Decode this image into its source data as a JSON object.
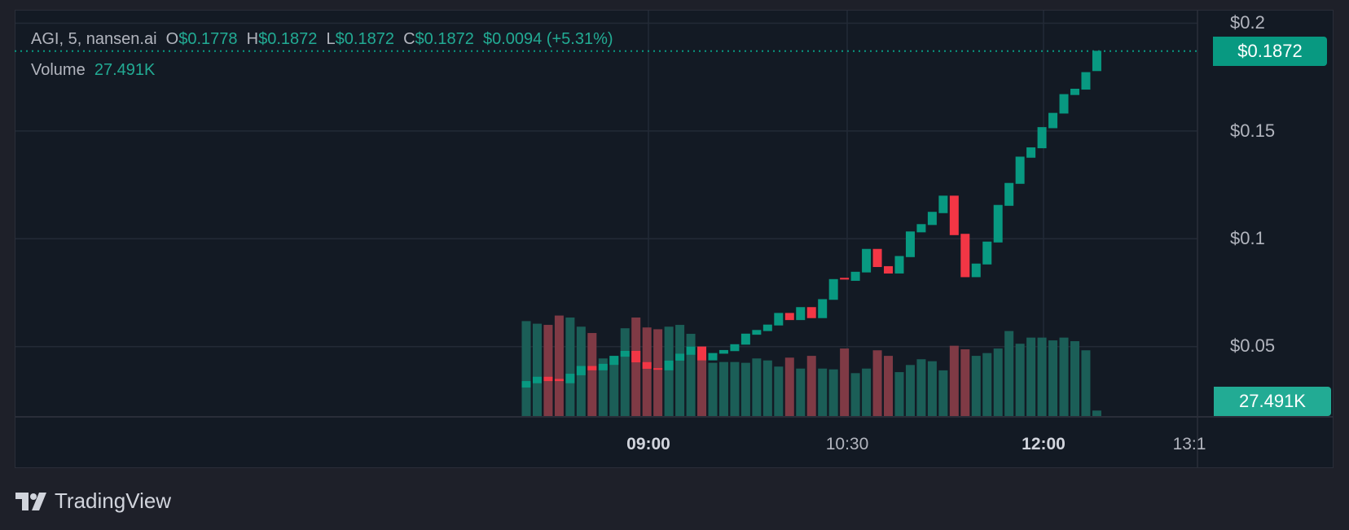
{
  "legend": {
    "symbol": "AGI, 5, nansen.ai",
    "open_label": "O",
    "open": "$0.1778",
    "high_label": "H",
    "high": "$0.1872",
    "low_label": "L",
    "low": "$0.1872",
    "close_label": "C",
    "close": "$0.1872",
    "change": "$0.0094 (+5.31%)",
    "volume_label": "Volume",
    "volume": "27.491K"
  },
  "price_axis": {
    "ticks": [
      "$0.2",
      "$0.15",
      "$0.1",
      "$0.05"
    ],
    "last_price": "$0.1872",
    "last_volume": "27.491K"
  },
  "time_axis": {
    "ticks": [
      "09:00",
      "10:30",
      "12:00",
      "13:1"
    ]
  },
  "brand": {
    "name": "TradingView"
  },
  "colors": {
    "up": "#089981",
    "down": "#f23645",
    "vol_up": "#1b5e57",
    "vol_down": "#7f3a45",
    "background": "#131a24",
    "grid": "#232a36"
  },
  "chart_data": {
    "type": "candlestick",
    "interval": "5",
    "ylim": [
      0,
      0.2
    ],
    "grid": true,
    "y_ticks": [
      0.05,
      0.1,
      0.15,
      0.2
    ],
    "x_ticks": [
      "09:00",
      "10:30",
      "12:00",
      "13:1"
    ],
    "last_price": 0.1872,
    "times": [
      "08:05",
      "08:10",
      "08:15",
      "08:20",
      "08:25",
      "08:30",
      "08:35",
      "08:40",
      "08:45",
      "08:50",
      "08:55",
      "09:00",
      "09:05",
      "09:10",
      "09:15",
      "09:20",
      "09:25",
      "09:30",
      "09:35",
      "09:40",
      "09:45",
      "09:50",
      "09:55",
      "10:00",
      "10:05",
      "10:10",
      "10:15",
      "10:20",
      "10:25",
      "10:30",
      "10:35",
      "10:40",
      "10:45",
      "10:50",
      "10:55",
      "11:00",
      "11:05",
      "11:10",
      "11:15",
      "11:20",
      "11:25",
      "11:30",
      "11:35",
      "11:40",
      "11:45",
      "11:50",
      "11:55",
      "12:00",
      "12:05",
      "12:10",
      "12:15",
      "12:20",
      "12:25"
    ],
    "open": [
      0.031,
      0.033,
      0.036,
      0.035,
      0.033,
      0.0367,
      0.041,
      0.039,
      0.0415,
      0.0453,
      0.048,
      0.0428,
      0.04,
      0.039,
      0.0435,
      0.0462,
      0.05,
      0.0436,
      0.0467,
      0.0479,
      0.0509,
      0.0555,
      0.0572,
      0.0598,
      0.0656,
      0.0623,
      0.0683,
      0.0632,
      0.0717,
      0.0819,
      0.0805,
      0.0844,
      0.0953,
      0.0873,
      0.0839,
      0.0915,
      0.103,
      0.1064,
      0.1119,
      0.12,
      0.1023,
      0.0822,
      0.0881,
      0.0983,
      0.1153,
      0.1255,
      0.1376,
      0.142,
      0.1513,
      0.1581,
      0.1667,
      0.1692,
      0.1778
    ],
    "close": [
      0.034,
      0.036,
      0.034,
      0.034,
      0.0374,
      0.041,
      0.039,
      0.042,
      0.0457,
      0.048,
      0.0427,
      0.0397,
      0.0397,
      0.0435,
      0.0467,
      0.05,
      0.0436,
      0.047,
      0.0484,
      0.0511,
      0.056,
      0.0577,
      0.0602,
      0.0656,
      0.0623,
      0.0683,
      0.0632,
      0.072,
      0.0813,
      0.0811,
      0.0847,
      0.0953,
      0.0869,
      0.0839,
      0.092,
      0.1034,
      0.1068,
      0.1125,
      0.12,
      0.1017,
      0.0822,
      0.0885,
      0.0987,
      0.1157,
      0.1259,
      0.1381,
      0.1424,
      0.1518,
      0.1584,
      0.1671,
      0.1696,
      0.1773,
      0.1872
    ],
    "volume_k": [
      478,
      465,
      459,
      506,
      496,
      450,
      418,
      290,
      302,
      442,
      496,
      446,
      437,
      450,
      459,
      414,
      350,
      268,
      272,
      272,
      268,
      290,
      280,
      249,
      294,
      239,
      303,
      239,
      235,
      340,
      216,
      239,
      331,
      303,
      221,
      257,
      286,
      276,
      230,
      354,
      336,
      303,
      317,
      340,
      428,
      364,
      395,
      395,
      381,
      395,
      377,
      331,
      27.491
    ]
  }
}
